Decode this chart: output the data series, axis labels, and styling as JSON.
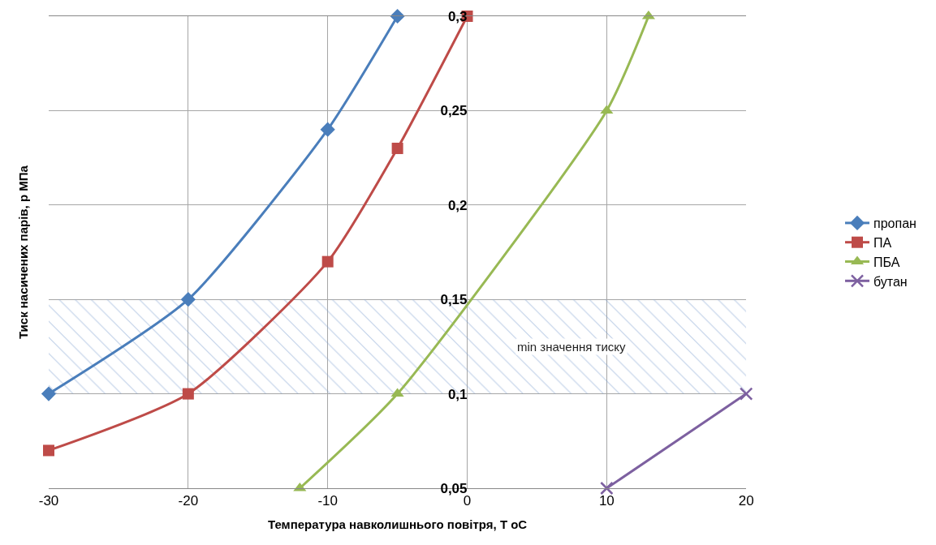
{
  "chart_data": {
    "type": "line",
    "xlabel": "Температура навколишнього повітря, Т оС",
    "ylabel": "Тиск насичених парів, р МПа",
    "xlim": [
      -30,
      20
    ],
    "xticks": [
      -30,
      -20,
      -10,
      0,
      10,
      20
    ],
    "ylim": [
      0.05,
      0.3
    ],
    "yticks": [
      {
        "value": 0.05,
        "label": "0,05"
      },
      {
        "value": 0.1,
        "label": "0,1"
      },
      {
        "value": 0.15,
        "label": "0,15"
      },
      {
        "value": 0.2,
        "label": "0,2"
      },
      {
        "value": 0.25,
        "label": "0,25"
      },
      {
        "value": 0.3,
        "label": "0,3"
      }
    ],
    "grid": true,
    "legend": "right",
    "series": [
      {
        "name": "пропан",
        "color": "#4a7ebb",
        "marker": "diamond",
        "x": [
          -30,
          -20,
          -10,
          -5
        ],
        "values": [
          0.1,
          0.15,
          0.24,
          0.3
        ]
      },
      {
        "name": "ПА",
        "color": "#be4b48",
        "marker": "square",
        "x": [
          -30,
          -20,
          -10,
          -5,
          0
        ],
        "values": [
          0.07,
          0.1,
          0.17,
          0.23,
          0.3
        ]
      },
      {
        "name": "ПБА",
        "color": "#98b954",
        "marker": "triangle",
        "x": [
          -12,
          -5,
          10,
          13
        ],
        "values": [
          0.05,
          0.1,
          0.25,
          0.3
        ]
      },
      {
        "name": "бутан",
        "color": "#7d60a0",
        "marker": "cross",
        "x": [
          10,
          20
        ],
        "values": [
          0.05,
          0.1
        ]
      }
    ],
    "bands": [
      {
        "axis": "y",
        "from": 0.1,
        "to": 0.15,
        "label": "min значення тиску",
        "color": "#7f9fcf"
      }
    ]
  }
}
